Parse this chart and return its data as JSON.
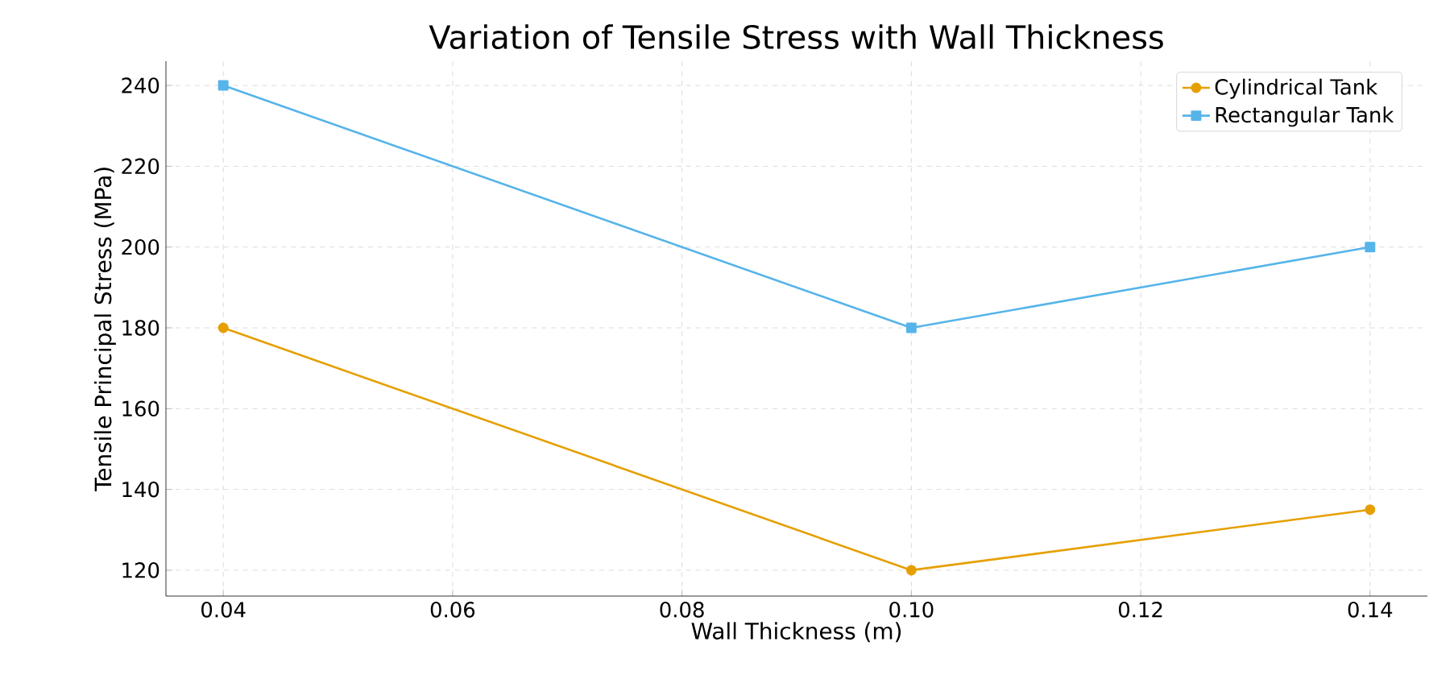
{
  "chart_data": {
    "type": "line",
    "title": "Variation of Tensile Stress with Wall Thickness",
    "xlabel": "Wall Thickness (m)",
    "ylabel": "Tensile Principal Stress (MPa)",
    "x": [
      0.04,
      0.1,
      0.14
    ],
    "series": [
      {
        "name": "Cylindrical Tank",
        "color": "#e69f00",
        "marker": "circle",
        "values": [
          180,
          120,
          135
        ]
      },
      {
        "name": "Rectangular Tank",
        "color": "#56b4e9",
        "marker": "square",
        "values": [
          240,
          180,
          200
        ]
      }
    ],
    "xlim": [
      0.035,
      0.145
    ],
    "ylim": [
      113.6,
      246
    ],
    "xticks": [
      {
        "value": 0.04,
        "label": "0.04"
      },
      {
        "value": 0.06,
        "label": "0.06"
      },
      {
        "value": 0.08,
        "label": "0.08"
      },
      {
        "value": 0.1,
        "label": "0.10"
      },
      {
        "value": 0.12,
        "label": "0.12"
      },
      {
        "value": 0.14,
        "label": "0.14"
      }
    ],
    "yticks": [
      120,
      140,
      160,
      180,
      200,
      220,
      240
    ],
    "grid": true,
    "legend": "top right",
    "line_style": "solid"
  }
}
